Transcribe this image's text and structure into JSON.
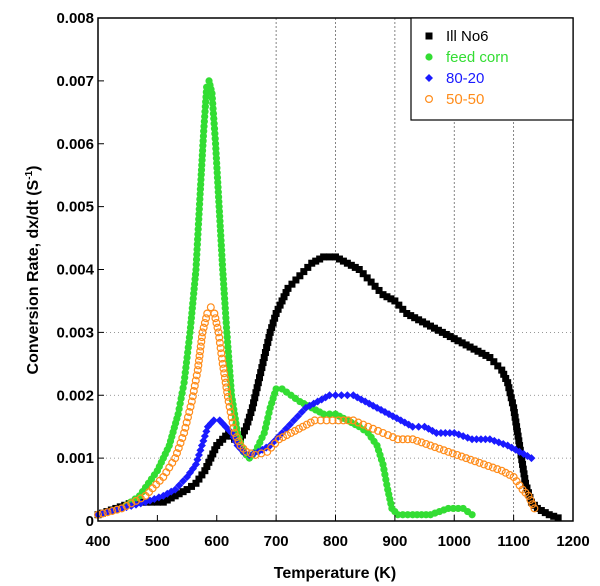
{
  "chart_data": {
    "type": "scatter",
    "title": "",
    "xlabel": "Temperature (K)",
    "ylabel_main": "Conversion Rate, dx/dt (S",
    "ylabel_sup": "-1",
    "ylabel_end": ")",
    "xlim": [
      400,
      1200
    ],
    "ylim": [
      0,
      0.008
    ],
    "xticks": [
      "400",
      "500",
      "600",
      "700",
      "800",
      "900",
      "1000",
      "1100",
      "1200"
    ],
    "yticks": [
      "0",
      "0.001",
      "0.002",
      "0.003",
      "0.004",
      "0.005",
      "0.006",
      "0.007",
      "0.008"
    ],
    "grid": "vertical-dashed at 700, 800, 900, 1000, 1100; horizontal-dotted at 0.001, 0.002, 0.003",
    "legend_position": "top-right",
    "series": [
      {
        "name": "Ill No6",
        "marker": "square",
        "color": "#000000",
        "points": [
          [
            400,
            0.0001
          ],
          [
            430,
            0.0002
          ],
          [
            460,
            0.0003
          ],
          [
            490,
            0.0003
          ],
          [
            510,
            0.0003
          ],
          [
            530,
            0.0004
          ],
          [
            550,
            0.0005
          ],
          [
            565,
            0.0006
          ],
          [
            580,
            0.0008
          ],
          [
            590,
            0.001
          ],
          [
            600,
            0.0012
          ],
          [
            610,
            0.0013
          ],
          [
            620,
            0.0014
          ],
          [
            630,
            0.0013
          ],
          [
            640,
            0.0013
          ],
          [
            650,
            0.0015
          ],
          [
            660,
            0.0018
          ],
          [
            670,
            0.0022
          ],
          [
            680,
            0.0026
          ],
          [
            690,
            0.003
          ],
          [
            700,
            0.0033
          ],
          [
            710,
            0.0035
          ],
          [
            720,
            0.0037
          ],
          [
            740,
            0.0039
          ],
          [
            760,
            0.0041
          ],
          [
            780,
            0.0042
          ],
          [
            800,
            0.0042
          ],
          [
            820,
            0.0041
          ],
          [
            840,
            0.004
          ],
          [
            860,
            0.0038
          ],
          [
            880,
            0.0036
          ],
          [
            900,
            0.0035
          ],
          [
            920,
            0.0033
          ],
          [
            940,
            0.0032
          ],
          [
            960,
            0.0031
          ],
          [
            980,
            0.003
          ],
          [
            1000,
            0.0029
          ],
          [
            1020,
            0.0028
          ],
          [
            1040,
            0.0027
          ],
          [
            1060,
            0.0026
          ],
          [
            1080,
            0.0024
          ],
          [
            1090,
            0.0022
          ],
          [
            1100,
            0.0018
          ],
          [
            1110,
            0.0012
          ],
          [
            1120,
            0.0006
          ],
          [
            1130,
            0.0003
          ],
          [
            1140,
            0.0002
          ],
          [
            1160,
            0.0001
          ],
          [
            1175,
            5e-05
          ]
        ]
      },
      {
        "name": "feed corn",
        "marker": "circle",
        "color": "#33dd33",
        "points": [
          [
            400,
            0.0001
          ],
          [
            440,
            0.0002
          ],
          [
            470,
            0.0004
          ],
          [
            500,
            0.0008
          ],
          [
            520,
            0.0012
          ],
          [
            535,
            0.0017
          ],
          [
            545,
            0.0022
          ],
          [
            555,
            0.003
          ],
          [
            565,
            0.004
          ],
          [
            572,
            0.0052
          ],
          [
            578,
            0.0062
          ],
          [
            583,
            0.0069
          ],
          [
            587,
            0.007
          ],
          [
            592,
            0.0068
          ],
          [
            598,
            0.006
          ],
          [
            604,
            0.005
          ],
          [
            610,
            0.004
          ],
          [
            617,
            0.003
          ],
          [
            625,
            0.002
          ],
          [
            635,
            0.0014
          ],
          [
            645,
            0.0011
          ],
          [
            655,
            0.001
          ],
          [
            665,
            0.0011
          ],
          [
            680,
            0.0014
          ],
          [
            690,
            0.0018
          ],
          [
            700,
            0.0021
          ],
          [
            710,
            0.0021
          ],
          [
            725,
            0.002
          ],
          [
            740,
            0.0019
          ],
          [
            760,
            0.0018
          ],
          [
            780,
            0.0017
          ],
          [
            800,
            0.0017
          ],
          [
            820,
            0.0016
          ],
          [
            840,
            0.0015
          ],
          [
            855,
            0.0014
          ],
          [
            870,
            0.0012
          ],
          [
            880,
            0.0009
          ],
          [
            888,
            0.0005
          ],
          [
            895,
            0.0002
          ],
          [
            905,
            0.0001
          ],
          [
            930,
            0.0001
          ],
          [
            960,
            0.0001
          ],
          [
            990,
            0.0002
          ],
          [
            1015,
            0.0002
          ],
          [
            1030,
            0.0001
          ]
        ]
      },
      {
        "name": "80-20",
        "marker": "diamond",
        "color": "#1a1aff",
        "points": [
          [
            400,
            0.0001
          ],
          [
            440,
            0.0002
          ],
          [
            480,
            0.0003
          ],
          [
            510,
            0.0004
          ],
          [
            530,
            0.0005
          ],
          [
            550,
            0.0007
          ],
          [
            565,
            0.0009
          ],
          [
            575,
            0.0012
          ],
          [
            585,
            0.0015
          ],
          [
            595,
            0.0016
          ],
          [
            605,
            0.0016
          ],
          [
            615,
            0.0015
          ],
          [
            625,
            0.0014
          ],
          [
            635,
            0.0012
          ],
          [
            645,
            0.0011
          ],
          [
            655,
            0.00105
          ],
          [
            670,
            0.0011
          ],
          [
            690,
            0.0012
          ],
          [
            710,
            0.0014
          ],
          [
            730,
            0.0016
          ],
          [
            750,
            0.0018
          ],
          [
            770,
            0.0019
          ],
          [
            790,
            0.002
          ],
          [
            810,
            0.002
          ],
          [
            830,
            0.002
          ],
          [
            850,
            0.0019
          ],
          [
            870,
            0.0018
          ],
          [
            890,
            0.0017
          ],
          [
            910,
            0.0016
          ],
          [
            930,
            0.0015
          ],
          [
            950,
            0.0015
          ],
          [
            970,
            0.0014
          ],
          [
            1000,
            0.0014
          ],
          [
            1030,
            0.0013
          ],
          [
            1060,
            0.0013
          ],
          [
            1090,
            0.0012
          ],
          [
            1110,
            0.0011
          ],
          [
            1130,
            0.001
          ]
        ]
      },
      {
        "name": "50-50",
        "marker": "open-circle",
        "color": "#ff8c1a",
        "points": [
          [
            400,
            0.0001
          ],
          [
            440,
            0.0002
          ],
          [
            480,
            0.0004
          ],
          [
            510,
            0.0007
          ],
          [
            530,
            0.001
          ],
          [
            545,
            0.0014
          ],
          [
            558,
            0.0019
          ],
          [
            568,
            0.0024
          ],
          [
            576,
            0.003
          ],
          [
            584,
            0.0033
          ],
          [
            590,
            0.0034
          ],
          [
            596,
            0.0033
          ],
          [
            603,
            0.003
          ],
          [
            610,
            0.0025
          ],
          [
            620,
            0.0019
          ],
          [
            630,
            0.0014
          ],
          [
            640,
            0.0012
          ],
          [
            650,
            0.0011
          ],
          [
            665,
            0.00105
          ],
          [
            685,
            0.0011
          ],
          [
            705,
            0.0013
          ],
          [
            725,
            0.0014
          ],
          [
            745,
            0.0015
          ],
          [
            765,
            0.0016
          ],
          [
            785,
            0.0016
          ],
          [
            805,
            0.0016
          ],
          [
            830,
            0.0016
          ],
          [
            855,
            0.0015
          ],
          [
            880,
            0.0014
          ],
          [
            905,
            0.0013
          ],
          [
            930,
            0.0013
          ],
          [
            960,
            0.0012
          ],
          [
            990,
            0.0011
          ],
          [
            1020,
            0.001
          ],
          [
            1050,
            0.0009
          ],
          [
            1080,
            0.0008
          ],
          [
            1100,
            0.0007
          ],
          [
            1115,
            0.0005
          ],
          [
            1125,
            0.0004
          ],
          [
            1135,
            0.0002
          ]
        ]
      }
    ]
  }
}
